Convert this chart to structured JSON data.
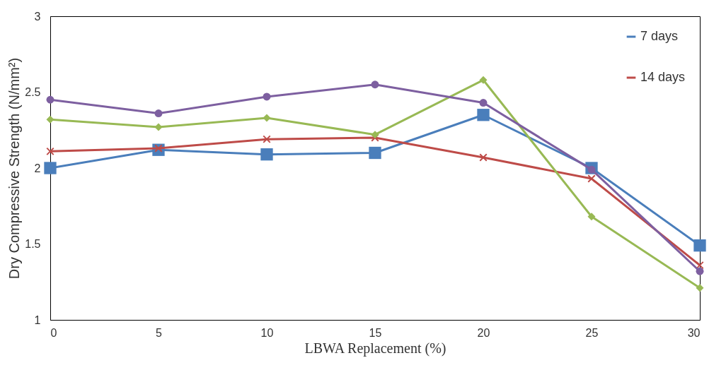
{
  "chart_data": {
    "type": "line",
    "xlabel": "LBWA Replacement (%)",
    "ylabel": "Dry  Compressive Strength (N/mm²)",
    "x": [
      0,
      5,
      10,
      15,
      20,
      25,
      30
    ],
    "series": [
      {
        "name": "7 days",
        "color": "#4a7ebb",
        "marker": "square",
        "values": [
          2.0,
          2.12,
          2.09,
          2.1,
          2.35,
          2.0,
          1.49
        ]
      },
      {
        "name": "14 days",
        "color": "#be4b48",
        "marker": "cross",
        "values": [
          2.11,
          2.13,
          2.19,
          2.2,
          2.07,
          1.93,
          1.36
        ]
      },
      {
        "color": "#98b954",
        "marker": "diamond",
        "values": [
          2.32,
          2.27,
          2.33,
          2.22,
          2.58,
          1.68,
          1.21
        ]
      },
      {
        "color": "#7d5fa0",
        "marker": "circle",
        "values": [
          2.45,
          2.36,
          2.47,
          2.55,
          2.43,
          1.99,
          1.32
        ]
      }
    ],
    "xlim": [
      0,
      30
    ],
    "xticks": [
      0,
      5,
      10,
      15,
      20,
      25,
      30
    ],
    "ylim": [
      1,
      3
    ],
    "yticks": [
      1,
      1.5,
      2,
      2.5,
      3
    ],
    "grid": false,
    "legend": "top right",
    "line_style": "solid"
  }
}
